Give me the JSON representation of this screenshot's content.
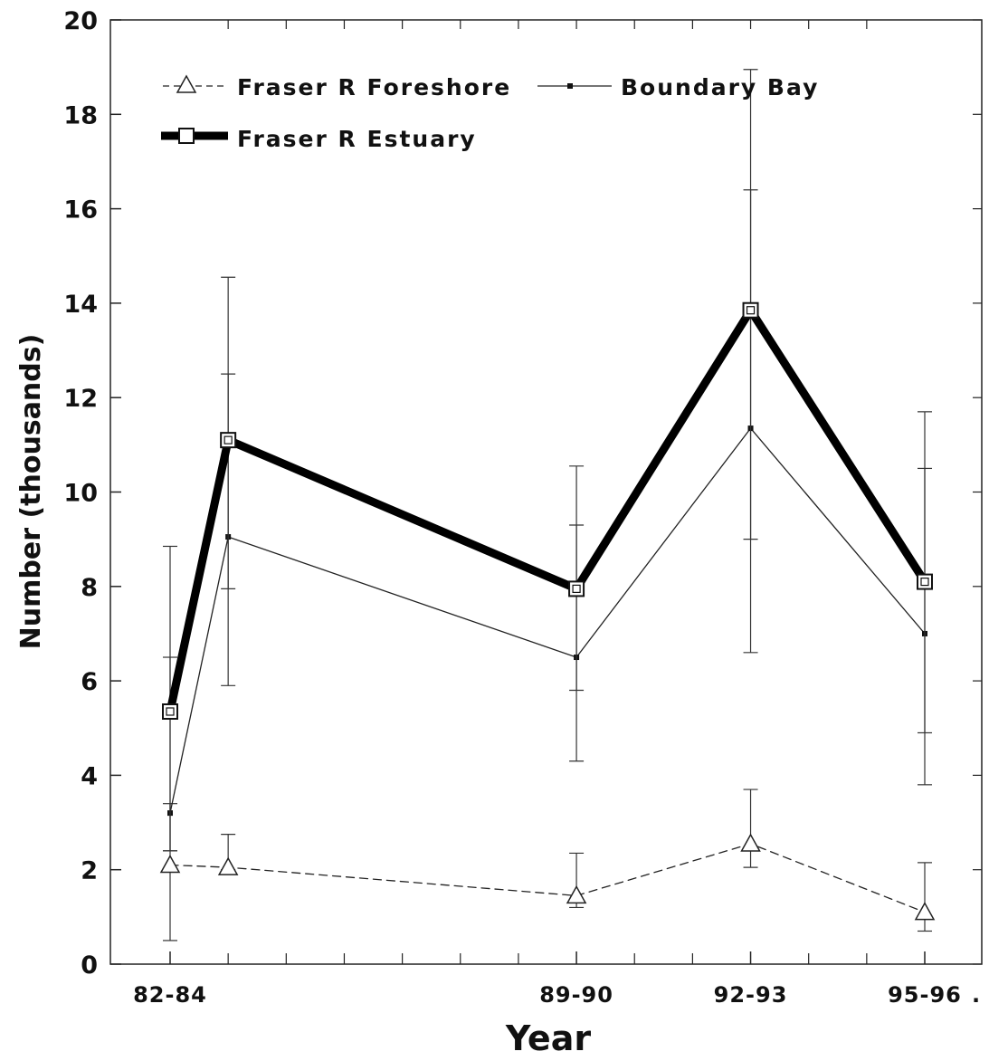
{
  "chart_data": {
    "type": "line",
    "xlabel": "Year",
    "ylabel": "Number (thousands)",
    "ylim": [
      0,
      20
    ],
    "yticks": [
      "0",
      "2",
      "4",
      "6",
      "8",
      "10",
      "12",
      "14",
      "16",
      "18",
      "20"
    ],
    "xlim": [
      1983,
      1996
    ],
    "xtick_labels": [
      {
        "label": "82-84",
        "x": 1983
      },
      {
        "label": "89-90",
        "x": 1990
      },
      {
        "label": "92-93",
        "x": 1993
      },
      {
        "label": "95-96",
        "x": 1996
      }
    ],
    "x_trailing_text": ".",
    "minor_x_ticks": [
      1984,
      1985,
      1986,
      1987,
      1988,
      1989,
      1991,
      1992,
      1994,
      1995
    ],
    "minor_x_ticks_top": [
      1984,
      1985,
      1986,
      1987,
      1988,
      1989,
      1990,
      1991,
      1992,
      1993,
      1994,
      1995
    ],
    "grid": false,
    "legend_position": "top-left",
    "series": [
      {
        "name": "Fraser R Foreshore",
        "style": "thin-dashed",
        "marker": "triangle",
        "color": "#222222",
        "x": [
          1983,
          1984,
          1990,
          1993,
          1996
        ],
        "y": [
          2.1,
          2.05,
          1.45,
          2.55,
          1.1
        ],
        "err_low": [
          0.5,
          2.0,
          1.2,
          2.05,
          0.7
        ],
        "err_high": [
          3.4,
          2.75,
          2.35,
          3.7,
          2.15
        ]
      },
      {
        "name": "Boundary Bay",
        "style": "thin",
        "marker": "small-square",
        "color": "#222222",
        "x": [
          1983,
          1984,
          1990,
          1993,
          1996
        ],
        "y": [
          3.2,
          9.05,
          6.5,
          11.35,
          7.0
        ],
        "err_low": [
          2.4,
          5.9,
          4.3,
          6.6,
          3.8
        ],
        "err_high": [
          6.5,
          12.5,
          9.3,
          16.4,
          10.5
        ]
      },
      {
        "name": "Fraser R Estuary",
        "style": "thick",
        "marker": "open-square",
        "color": "#000000",
        "x": [
          1983,
          1984,
          1990,
          1993,
          1996
        ],
        "y": [
          5.35,
          11.1,
          7.95,
          13.85,
          8.1
        ],
        "err_low": [
          2.4,
          7.95,
          5.8,
          9.0,
          4.9
        ],
        "err_high": [
          8.85,
          14.55,
          10.55,
          18.95,
          11.7
        ]
      }
    ]
  }
}
